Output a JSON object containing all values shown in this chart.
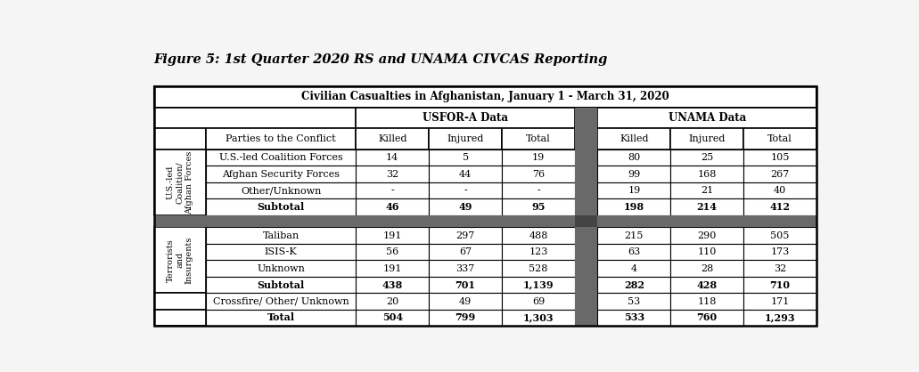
{
  "title": "Figure 5: 1st Quarter 2020 RS and UNAMA CIVCAS Reporting",
  "table_header": "Civilian Casualties in Afghanistan, January 1 - March 31, 2020",
  "group_headers": [
    "USFOR-A Data",
    "UNAMA Data"
  ],
  "row_group1_label": "U.S.-led\nCoalition/\nAfghan Forces",
  "row_group2_label": "Terrorists\nand\nInsurgents",
  "rows": [
    {
      "label": "U.S.-led Coalition Forces",
      "usfor": [
        "14",
        "5",
        "19"
      ],
      "unama": [
        "80",
        "25",
        "105"
      ],
      "bold": false,
      "group": 1
    },
    {
      "label": "Afghan Security Forces",
      "usfor": [
        "32",
        "44",
        "76"
      ],
      "unama": [
        "99",
        "168",
        "267"
      ],
      "bold": false,
      "group": 1
    },
    {
      "label": "Other/Unknown",
      "usfor": [
        "-",
        "-",
        "-"
      ],
      "unama": [
        "19",
        "21",
        "40"
      ],
      "bold": false,
      "group": 1
    },
    {
      "label": "Subtotal",
      "usfor": [
        "46",
        "49",
        "95"
      ],
      "unama": [
        "198",
        "214",
        "412"
      ],
      "bold": true,
      "group": 1
    },
    {
      "label": "Taliban",
      "usfor": [
        "191",
        "297",
        "488"
      ],
      "unama": [
        "215",
        "290",
        "505"
      ],
      "bold": false,
      "group": 2
    },
    {
      "label": "ISIS-K",
      "usfor": [
        "56",
        "67",
        "123"
      ],
      "unama": [
        "63",
        "110",
        "173"
      ],
      "bold": false,
      "group": 2
    },
    {
      "label": "Unknown",
      "usfor": [
        "191",
        "337",
        "528"
      ],
      "unama": [
        "4",
        "28",
        "32"
      ],
      "bold": false,
      "group": 2
    },
    {
      "label": "Subtotal",
      "usfor": [
        "438",
        "701",
        "1,139"
      ],
      "unama": [
        "282",
        "428",
        "710"
      ],
      "bold": true,
      "group": 2
    },
    {
      "label": "Crossfire/ Other/ Unknown",
      "usfor": [
        "20",
        "49",
        "69"
      ],
      "unama": [
        "53",
        "118",
        "171"
      ],
      "bold": false,
      "group": 0
    },
    {
      "label": "Total",
      "usfor": [
        "504",
        "799",
        "1,303"
      ],
      "unama": [
        "533",
        "760",
        "1,293"
      ],
      "bold": true,
      "group": 0
    }
  ],
  "background_color": "#f5f5f5",
  "cell_bg": "#ffffff",
  "dark_band_color": "#696969",
  "dark_col_color": "#696969",
  "border_color": "#000000",
  "text_color": "#000000"
}
